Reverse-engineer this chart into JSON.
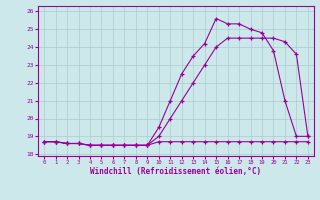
{
  "bg_color": "#cce8ea",
  "line_color": "#990099",
  "grid_color": "#aacccc",
  "xlim": [
    -0.5,
    23.5
  ],
  "ylim": [
    17.9,
    26.3
  ],
  "yticks": [
    18,
    19,
    20,
    21,
    22,
    23,
    24,
    25,
    26
  ],
  "xticks": [
    0,
    1,
    2,
    3,
    4,
    5,
    6,
    7,
    8,
    9,
    10,
    11,
    12,
    13,
    14,
    15,
    16,
    17,
    18,
    19,
    20,
    21,
    22,
    23
  ],
  "xlabel": "Windchill (Refroidissement éolien,°C)",
  "line1_x": [
    0,
    1,
    2,
    3,
    4,
    5,
    6,
    7,
    8,
    9,
    10,
    11,
    12,
    13,
    14,
    15,
    16,
    17,
    18,
    19,
    20,
    21,
    22,
    23
  ],
  "line1_y": [
    18.7,
    18.7,
    18.6,
    18.6,
    18.5,
    18.5,
    18.5,
    18.5,
    18.5,
    18.5,
    18.7,
    18.7,
    18.7,
    18.7,
    18.7,
    18.7,
    18.7,
    18.7,
    18.7,
    18.7,
    18.7,
    18.7,
    18.7,
    18.7
  ],
  "line2_x": [
    0,
    1,
    2,
    3,
    4,
    5,
    6,
    7,
    8,
    9,
    10,
    11,
    12,
    13,
    14,
    15,
    16,
    17,
    18,
    19,
    20,
    21,
    22,
    23
  ],
  "line2_y": [
    18.7,
    18.7,
    18.6,
    18.6,
    18.5,
    18.5,
    18.5,
    18.5,
    18.5,
    18.5,
    19.0,
    20.0,
    21.0,
    22.0,
    23.0,
    24.0,
    24.5,
    24.5,
    24.5,
    24.5,
    24.5,
    24.3,
    23.6,
    19.0
  ],
  "line3_x": [
    0,
    1,
    2,
    3,
    4,
    5,
    6,
    7,
    8,
    9,
    10,
    11,
    12,
    13,
    14,
    15,
    16,
    17,
    18,
    19,
    20,
    21,
    22,
    23
  ],
  "line3_y": [
    18.7,
    18.7,
    18.6,
    18.6,
    18.5,
    18.5,
    18.5,
    18.5,
    18.5,
    18.5,
    19.5,
    21.0,
    22.5,
    23.5,
    24.2,
    25.6,
    25.3,
    25.3,
    25.0,
    24.8,
    23.8,
    21.0,
    19.0,
    19.0
  ]
}
